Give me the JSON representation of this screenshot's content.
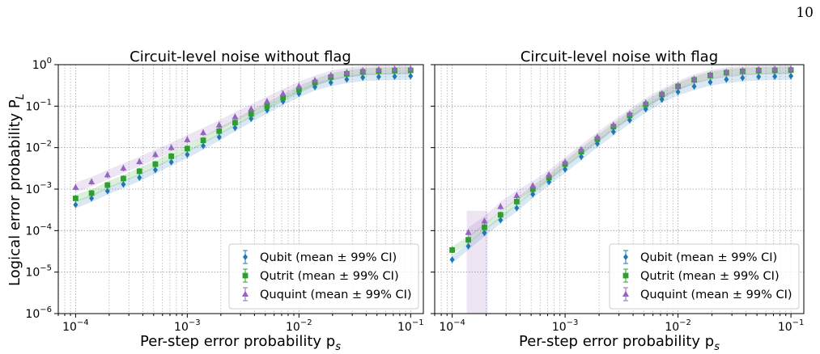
{
  "page_number": "10",
  "colors": {
    "qubit": "#1f77b4",
    "qutrit": "#2ca02c",
    "ququint": "#9467bd"
  },
  "shared": {
    "ylabel": "Logical error probability P",
    "ylabel_sub": "L",
    "xlabel": "Per-step error probability p",
    "xlabel_sub": "s",
    "xticks": [
      0.0001,
      0.001,
      0.01,
      0.1
    ],
    "xtick_labels": [
      [
        "10",
        "−4"
      ],
      [
        "10",
        "−3"
      ],
      [
        "10",
        "−2"
      ],
      [
        "10",
        "−1"
      ]
    ],
    "yticks": [
      1e-06,
      1e-05,
      0.0001,
      0.001,
      0.01,
      0.1,
      1
    ],
    "ytick_labels": [
      [
        "10",
        "−6"
      ],
      [
        "10",
        "−5"
      ],
      [
        "10",
        "−4"
      ],
      [
        "10",
        "−3"
      ],
      [
        "10",
        "−2"
      ],
      [
        "10",
        "−1"
      ],
      [
        "10",
        "0"
      ]
    ]
  },
  "chart_data": [
    {
      "type": "scatter",
      "title": "Circuit-level noise without flag",
      "xscale": "log",
      "yscale": "log",
      "xlim": [
        7e-05,
        0.13
      ],
      "ylim": [
        1e-06,
        1
      ],
      "grid": true,
      "legend_position": "lower-right",
      "x": [
        0.0001,
        0.000139,
        0.000193,
        0.000268,
        0.000373,
        0.000518,
        0.00072,
        0.001,
        0.00139,
        0.00193,
        0.00268,
        0.00373,
        0.00518,
        0.0072,
        0.01,
        0.0139,
        0.0193,
        0.0268,
        0.0373,
        0.0518,
        0.072,
        0.1
      ],
      "series": [
        {
          "name": "Qubit (mean ± 99% CI)",
          "marker": "diamond",
          "key": "qubit",
          "values": [
            0.00042,
            0.0006,
            0.0009,
            0.0013,
            0.0019,
            0.0029,
            0.0045,
            0.0068,
            0.011,
            0.018,
            0.03,
            0.05,
            0.08,
            0.13,
            0.2,
            0.29,
            0.37,
            0.44,
            0.49,
            0.51,
            0.52,
            0.53
          ]
        },
        {
          "name": "Qutrit (mean ± 99% CI)",
          "marker": "square",
          "key": "qutrit",
          "values": [
            0.0006,
            0.0008,
            0.00125,
            0.0018,
            0.0027,
            0.004,
            0.0062,
            0.0095,
            0.015,
            0.025,
            0.04,
            0.065,
            0.1,
            0.16,
            0.25,
            0.37,
            0.5,
            0.6,
            0.67,
            0.7,
            0.72,
            0.73
          ]
        },
        {
          "name": "Ququint (mean ± 99% CI)",
          "marker": "triangle",
          "key": "ququint",
          "values": [
            0.0011,
            0.0015,
            0.0022,
            0.0032,
            0.0046,
            0.0068,
            0.01,
            0.0155,
            0.023,
            0.035,
            0.055,
            0.085,
            0.13,
            0.2,
            0.3,
            0.42,
            0.55,
            0.65,
            0.72,
            0.76,
            0.78,
            0.79
          ]
        }
      ]
    },
    {
      "type": "scatter",
      "title": "Circuit-level noise with flag",
      "xscale": "log",
      "yscale": "log",
      "xlim": [
        7e-05,
        0.13
      ],
      "ylim": [
        1e-06,
        1
      ],
      "grid": true,
      "legend_position": "lower-right",
      "x": [
        0.0001,
        0.000139,
        0.000193,
        0.000268,
        0.000373,
        0.000518,
        0.00072,
        0.001,
        0.00139,
        0.00193,
        0.00268,
        0.00373,
        0.00518,
        0.0072,
        0.01,
        0.0139,
        0.0193,
        0.0268,
        0.0373,
        0.0518,
        0.072,
        0.1
      ],
      "series": [
        {
          "name": "Qubit (mean ± 99% CI)",
          "marker": "diamond",
          "key": "qubit",
          "values": [
            2e-05,
            4.2e-05,
            8.8e-05,
            0.00018,
            0.00035,
            0.00075,
            0.0015,
            0.003,
            0.006,
            0.0125,
            0.024,
            0.046,
            0.085,
            0.145,
            0.22,
            0.3,
            0.38,
            0.44,
            0.48,
            0.51,
            0.52,
            0.53
          ]
        },
        {
          "name": "Qutrit (mean ± 99% CI)",
          "marker": "square",
          "key": "qutrit",
          "values": [
            3.4e-05,
            6e-05,
            0.00012,
            0.00024,
            0.0005,
            0.001,
            0.0019,
            0.004,
            0.008,
            0.016,
            0.032,
            0.06,
            0.11,
            0.19,
            0.3,
            0.43,
            0.55,
            0.64,
            0.69,
            0.72,
            0.73,
            0.74
          ]
        },
        {
          "name": "Ququint (mean ± 99% CI)",
          "marker": "triangle",
          "key": "ququint",
          "values": [
            null,
            9e-05,
            0.00017,
            0.00038,
            0.0007,
            0.0012,
            0.0022,
            0.0045,
            0.009,
            0.018,
            0.035,
            0.065,
            0.12,
            0.2,
            0.31,
            0.45,
            0.57,
            0.66,
            0.72,
            0.76,
            0.78,
            0.79
          ]
        }
      ]
    }
  ]
}
